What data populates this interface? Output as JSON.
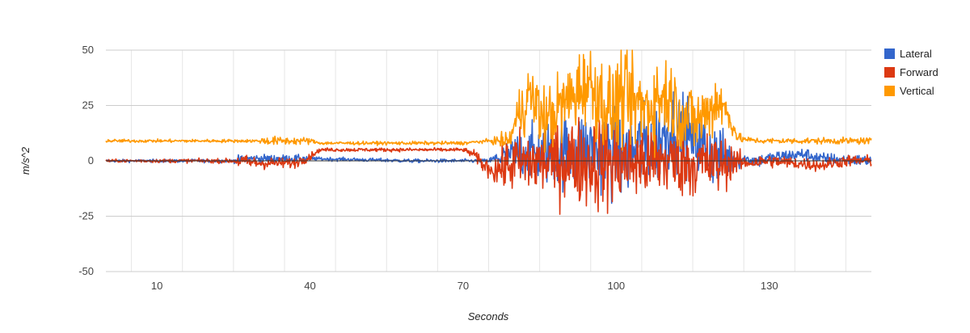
{
  "chart_data": {
    "type": "line",
    "title": "",
    "xlabel": "Seconds",
    "ylabel": "m/s^2",
    "xlim": [
      0,
      150
    ],
    "ylim": [
      -50,
      50
    ],
    "x_ticks": [
      10,
      40,
      70,
      100,
      130
    ],
    "y_ticks": [
      50,
      25,
      0,
      -25,
      -50
    ],
    "grid": true,
    "legend_position": "right",
    "series": [
      {
        "name": "Lateral",
        "color": "#3366cc",
        "profile": [
          [
            0,
            0
          ],
          [
            25,
            0
          ],
          [
            28,
            1
          ],
          [
            33,
            1
          ],
          [
            40,
            1
          ],
          [
            50,
            0.5
          ],
          [
            60,
            0
          ],
          [
            75,
            0
          ],
          [
            78,
            2
          ],
          [
            82,
            3
          ],
          [
            88,
            4
          ],
          [
            93,
            5
          ],
          [
            98,
            4
          ],
          [
            103,
            4
          ],
          [
            108,
            8
          ],
          [
            111,
            16
          ],
          [
            115,
            10
          ],
          [
            120,
            2
          ],
          [
            123,
            1
          ],
          [
            128,
            0
          ],
          [
            132,
            2
          ],
          [
            137,
            3
          ],
          [
            140,
            1
          ],
          [
            150,
            0
          ]
        ],
        "amplitude": [
          [
            0,
            0.6
          ],
          [
            25,
            0.8
          ],
          [
            26,
            2
          ],
          [
            40,
            1.5
          ],
          [
            41,
            0.8
          ],
          [
            75,
            0.8
          ],
          [
            78,
            6
          ],
          [
            80,
            10
          ],
          [
            90,
            16
          ],
          [
            100,
            20
          ],
          [
            110,
            18
          ],
          [
            120,
            14
          ],
          [
            123,
            6
          ],
          [
            125,
            3
          ],
          [
            150,
            2.5
          ]
        ]
      },
      {
        "name": "Forward",
        "color": "#dc3912",
        "profile": [
          [
            0,
            0
          ],
          [
            25,
            0
          ],
          [
            30,
            -1
          ],
          [
            37,
            -1
          ],
          [
            40,
            2
          ],
          [
            42,
            5
          ],
          [
            55,
            5
          ],
          [
            70,
            5
          ],
          [
            72,
            3
          ],
          [
            74,
            -2
          ],
          [
            76,
            -4
          ],
          [
            78,
            -3
          ],
          [
            80,
            -1
          ],
          [
            90,
            0
          ],
          [
            100,
            -1
          ],
          [
            110,
            0
          ],
          [
            120,
            -2
          ],
          [
            123,
            0
          ],
          [
            125,
            -1
          ],
          [
            130,
            0
          ],
          [
            135,
            -1
          ],
          [
            140,
            -2
          ],
          [
            145,
            0
          ],
          [
            150,
            0
          ]
        ],
        "amplitude": [
          [
            0,
            0.6
          ],
          [
            25,
            1
          ],
          [
            26,
            3
          ],
          [
            40,
            2
          ],
          [
            41,
            0.8
          ],
          [
            70,
            0.8
          ],
          [
            75,
            4
          ],
          [
            80,
            14
          ],
          [
            90,
            18
          ],
          [
            97,
            22
          ],
          [
            100,
            20
          ],
          [
            105,
            18
          ],
          [
            110,
            16
          ],
          [
            120,
            14
          ],
          [
            123,
            7
          ],
          [
            125,
            3
          ],
          [
            150,
            2.5
          ]
        ]
      },
      {
        "name": "Vertical",
        "color": "#ff9900",
        "profile": [
          [
            0,
            9
          ],
          [
            30,
            9
          ],
          [
            40,
            9
          ],
          [
            42,
            8
          ],
          [
            70,
            8
          ],
          [
            75,
            9
          ],
          [
            79,
            9
          ],
          [
            81,
            22
          ],
          [
            83,
            30
          ],
          [
            86,
            18
          ],
          [
            88,
            22
          ],
          [
            92,
            30
          ],
          [
            94,
            36
          ],
          [
            97,
            28
          ],
          [
            99,
            22
          ],
          [
            101,
            30
          ],
          [
            103,
            26
          ],
          [
            106,
            24
          ],
          [
            108,
            28
          ],
          [
            110,
            30
          ],
          [
            113,
            20
          ],
          [
            116,
            18
          ],
          [
            118,
            22
          ],
          [
            120,
            28
          ],
          [
            122,
            20
          ],
          [
            124,
            10
          ],
          [
            128,
            9
          ],
          [
            135,
            9
          ],
          [
            150,
            9
          ]
        ],
        "amplitude": [
          [
            0,
            0.7
          ],
          [
            30,
            0.7
          ],
          [
            31,
            2
          ],
          [
            40,
            1.5
          ],
          [
            41,
            0.7
          ],
          [
            75,
            0.8
          ],
          [
            79,
            4
          ],
          [
            82,
            14
          ],
          [
            95,
            18
          ],
          [
            100,
            22
          ],
          [
            110,
            18
          ],
          [
            120,
            14
          ],
          [
            123,
            4
          ],
          [
            125,
            1.2
          ],
          [
            150,
            1.5
          ]
        ]
      }
    ]
  }
}
